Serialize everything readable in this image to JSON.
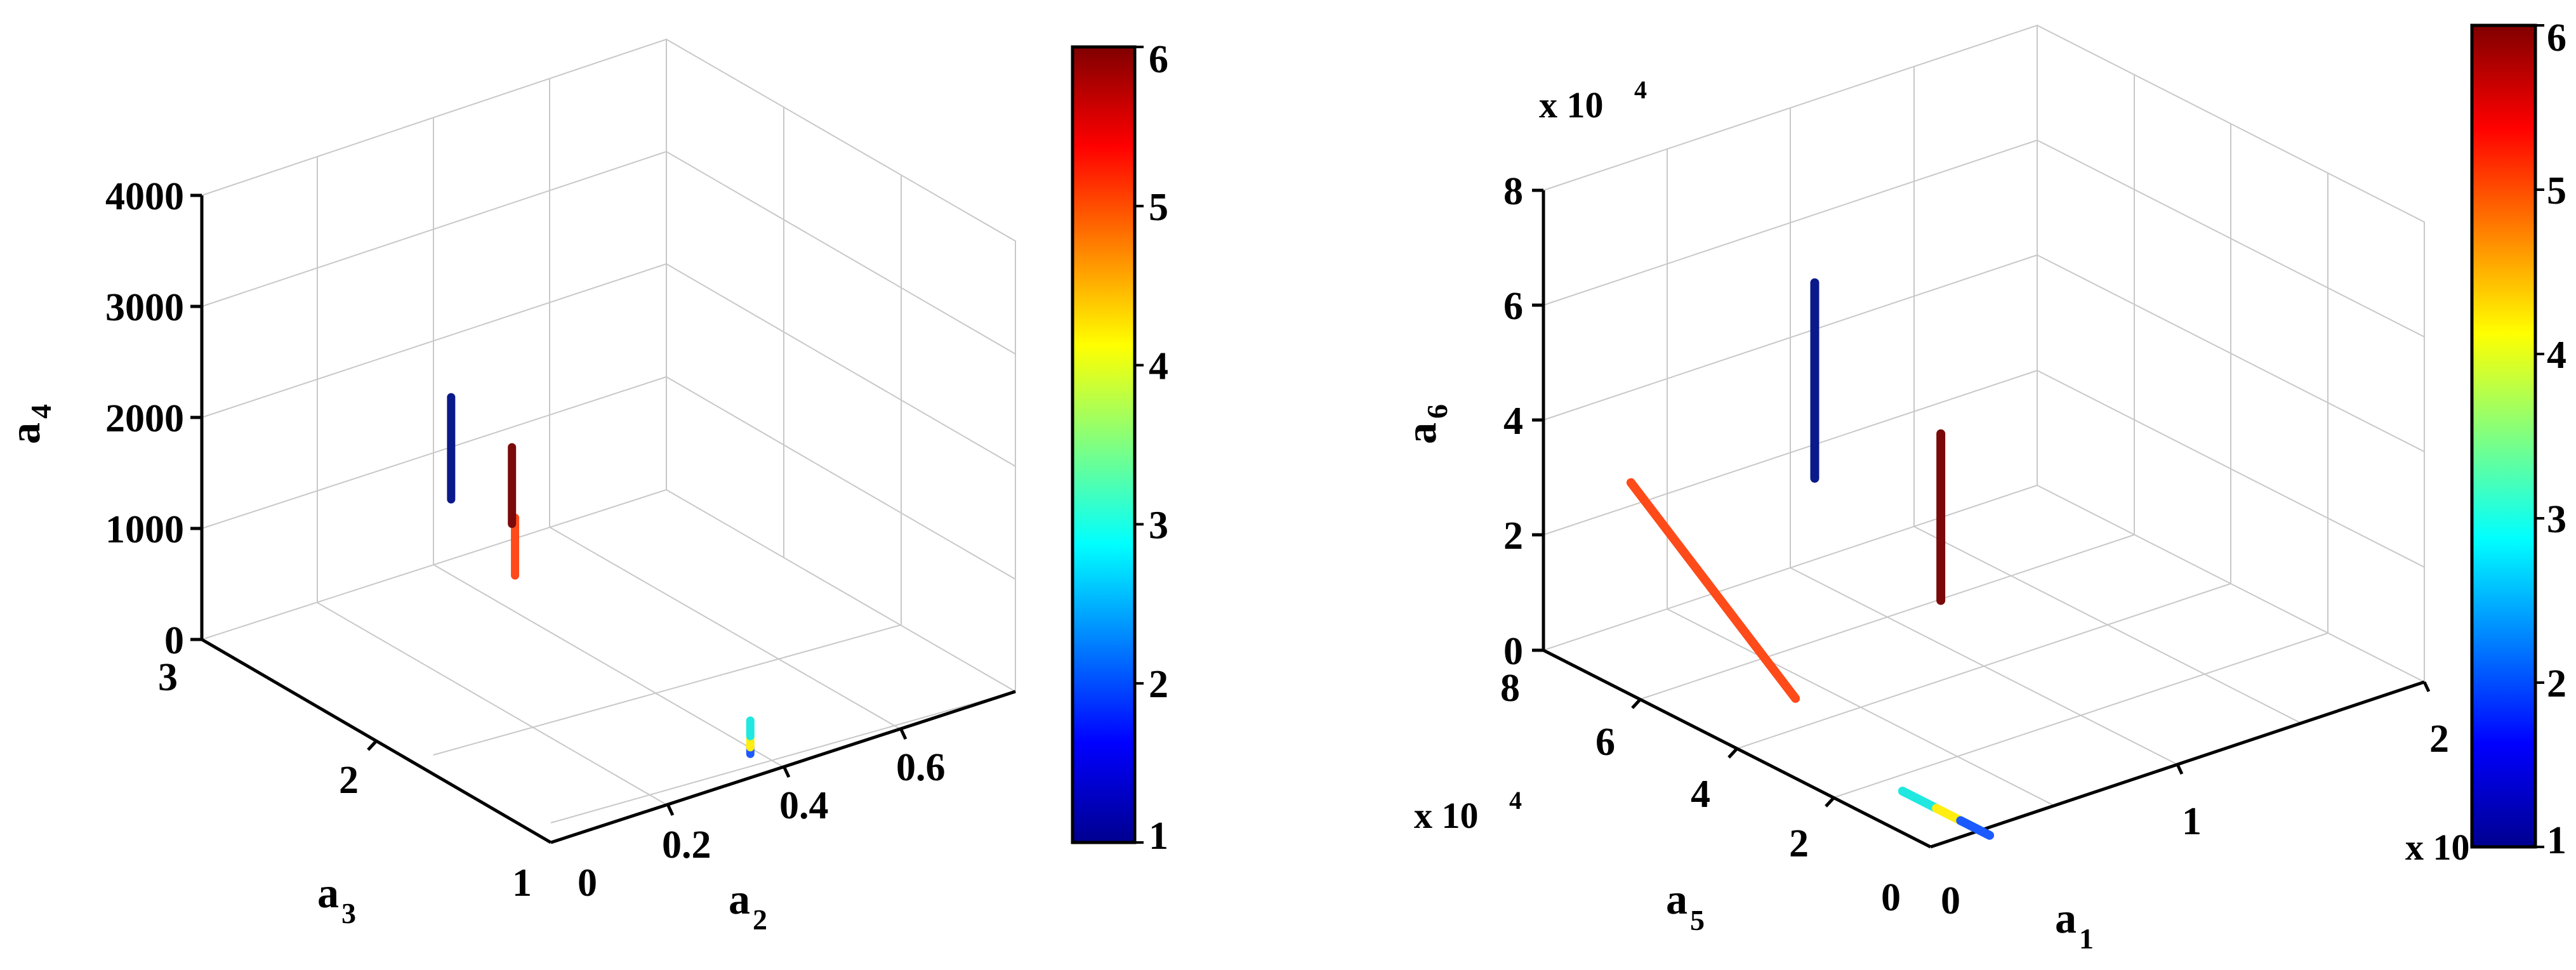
{
  "chart_data": [
    {
      "type": "scatter3d",
      "zlabel": "a",
      "zlabel_sub": "4",
      "xlabel": "a",
      "xlabel_sub": "2",
      "ylabel": "a",
      "ylabel_sub": "3",
      "ztick_labels": [
        "0",
        "1000",
        "2000",
        "3000",
        "4000"
      ],
      "xtick_labels": [
        "0",
        "0.2",
        "0.4",
        "0.6"
      ],
      "ytick_labels": [
        "1",
        "2",
        "3"
      ],
      "zlim": [
        0,
        4000
      ],
      "xlim": [
        0,
        0.7
      ],
      "ylim": [
        1,
        3
      ],
      "grid": true,
      "color_by": "class",
      "series": [
        {
          "class": 1,
          "color": "#0a1a8a",
          "x": 0.21,
          "y": 2.37,
          "z_range": [
            1430,
            2350
          ]
        },
        {
          "class": 5,
          "color": "#ff4a1a",
          "x": 0.28,
          "y": 2.27,
          "z_range": [
            700,
            1220
          ]
        },
        {
          "class": 6,
          "color": "#7a0a0a",
          "x": 0.42,
          "y": 2.82,
          "z_range": [
            390,
            1080
          ]
        },
        {
          "class": 2,
          "color": "#1a5aff",
          "x": 0.34,
          "y": 1.15,
          "z_range": [
            0,
            60
          ]
        },
        {
          "class": 4,
          "color": "#ffee10",
          "x": 0.34,
          "y": 1.15,
          "z_range": [
            60,
            160
          ]
        },
        {
          "class": 3,
          "color": "#20e8e0",
          "x": 0.34,
          "y": 1.15,
          "z_range": [
            160,
            300
          ]
        }
      ],
      "colorbar": {
        "tick_labels": [
          "1",
          "2",
          "3",
          "4",
          "5",
          "6"
        ],
        "range": [
          1,
          6
        ],
        "colormap": "jet"
      }
    },
    {
      "type": "scatter3d",
      "zlabel": "a",
      "zlabel_sub": "6",
      "xlabel": "a",
      "xlabel_sub": "1",
      "ylabel": "a",
      "ylabel_sub": "5",
      "zmultiplier": "x 10",
      "zmultiplier_exp": "4",
      "ymultiplier": "x 10",
      "ymultiplier_exp": "4",
      "xmultiplier": "x 10",
      "ztick_labels": [
        "0",
        "2",
        "4",
        "6",
        "8"
      ],
      "xtick_labels": [
        "0",
        "1",
        "2"
      ],
      "ytick_labels": [
        "0",
        "2",
        "4",
        "6",
        "8"
      ],
      "zlim": [
        0,
        8
      ],
      "xlim": [
        0,
        2
      ],
      "ylim": [
        0,
        8
      ],
      "grid": true,
      "color_by": "class",
      "series": [
        {
          "class": 1,
          "color": "#0a1a8a",
          "from": [
            0.55,
            5.2,
            3.4
          ],
          "to": [
            0.55,
            5.2,
            6.8
          ]
        },
        {
          "class": 6,
          "color": "#7a0a0a",
          "from": [
            1.1,
            5.4,
            0.4
          ],
          "to": [
            1.1,
            5.4,
            3.3
          ]
        },
        {
          "class": 5,
          "color": "#ff4a1a",
          "from": [
            0.08,
            6.6,
            3.4
          ],
          "to": [
            0.08,
            3.2,
            1.1
          ]
        },
        {
          "class": 3,
          "color": "#20e8e0",
          "from": [
            0.2,
            1.6,
            0.0
          ],
          "to": [
            0.2,
            0.9,
            0.0
          ]
        },
        {
          "class": 4,
          "color": "#ffee10",
          "from": [
            0.2,
            0.9,
            0.0
          ],
          "to": [
            0.2,
            0.4,
            0.0
          ]
        },
        {
          "class": 2,
          "color": "#1a5aff",
          "from": [
            0.2,
            0.4,
            0.0
          ],
          "to": [
            0.2,
            -0.2,
            0.0
          ]
        }
      ],
      "colorbar": {
        "tick_labels": [
          "1",
          "2",
          "3",
          "4",
          "5",
          "6"
        ],
        "range": [
          1,
          6
        ],
        "colormap": "jet"
      }
    }
  ]
}
